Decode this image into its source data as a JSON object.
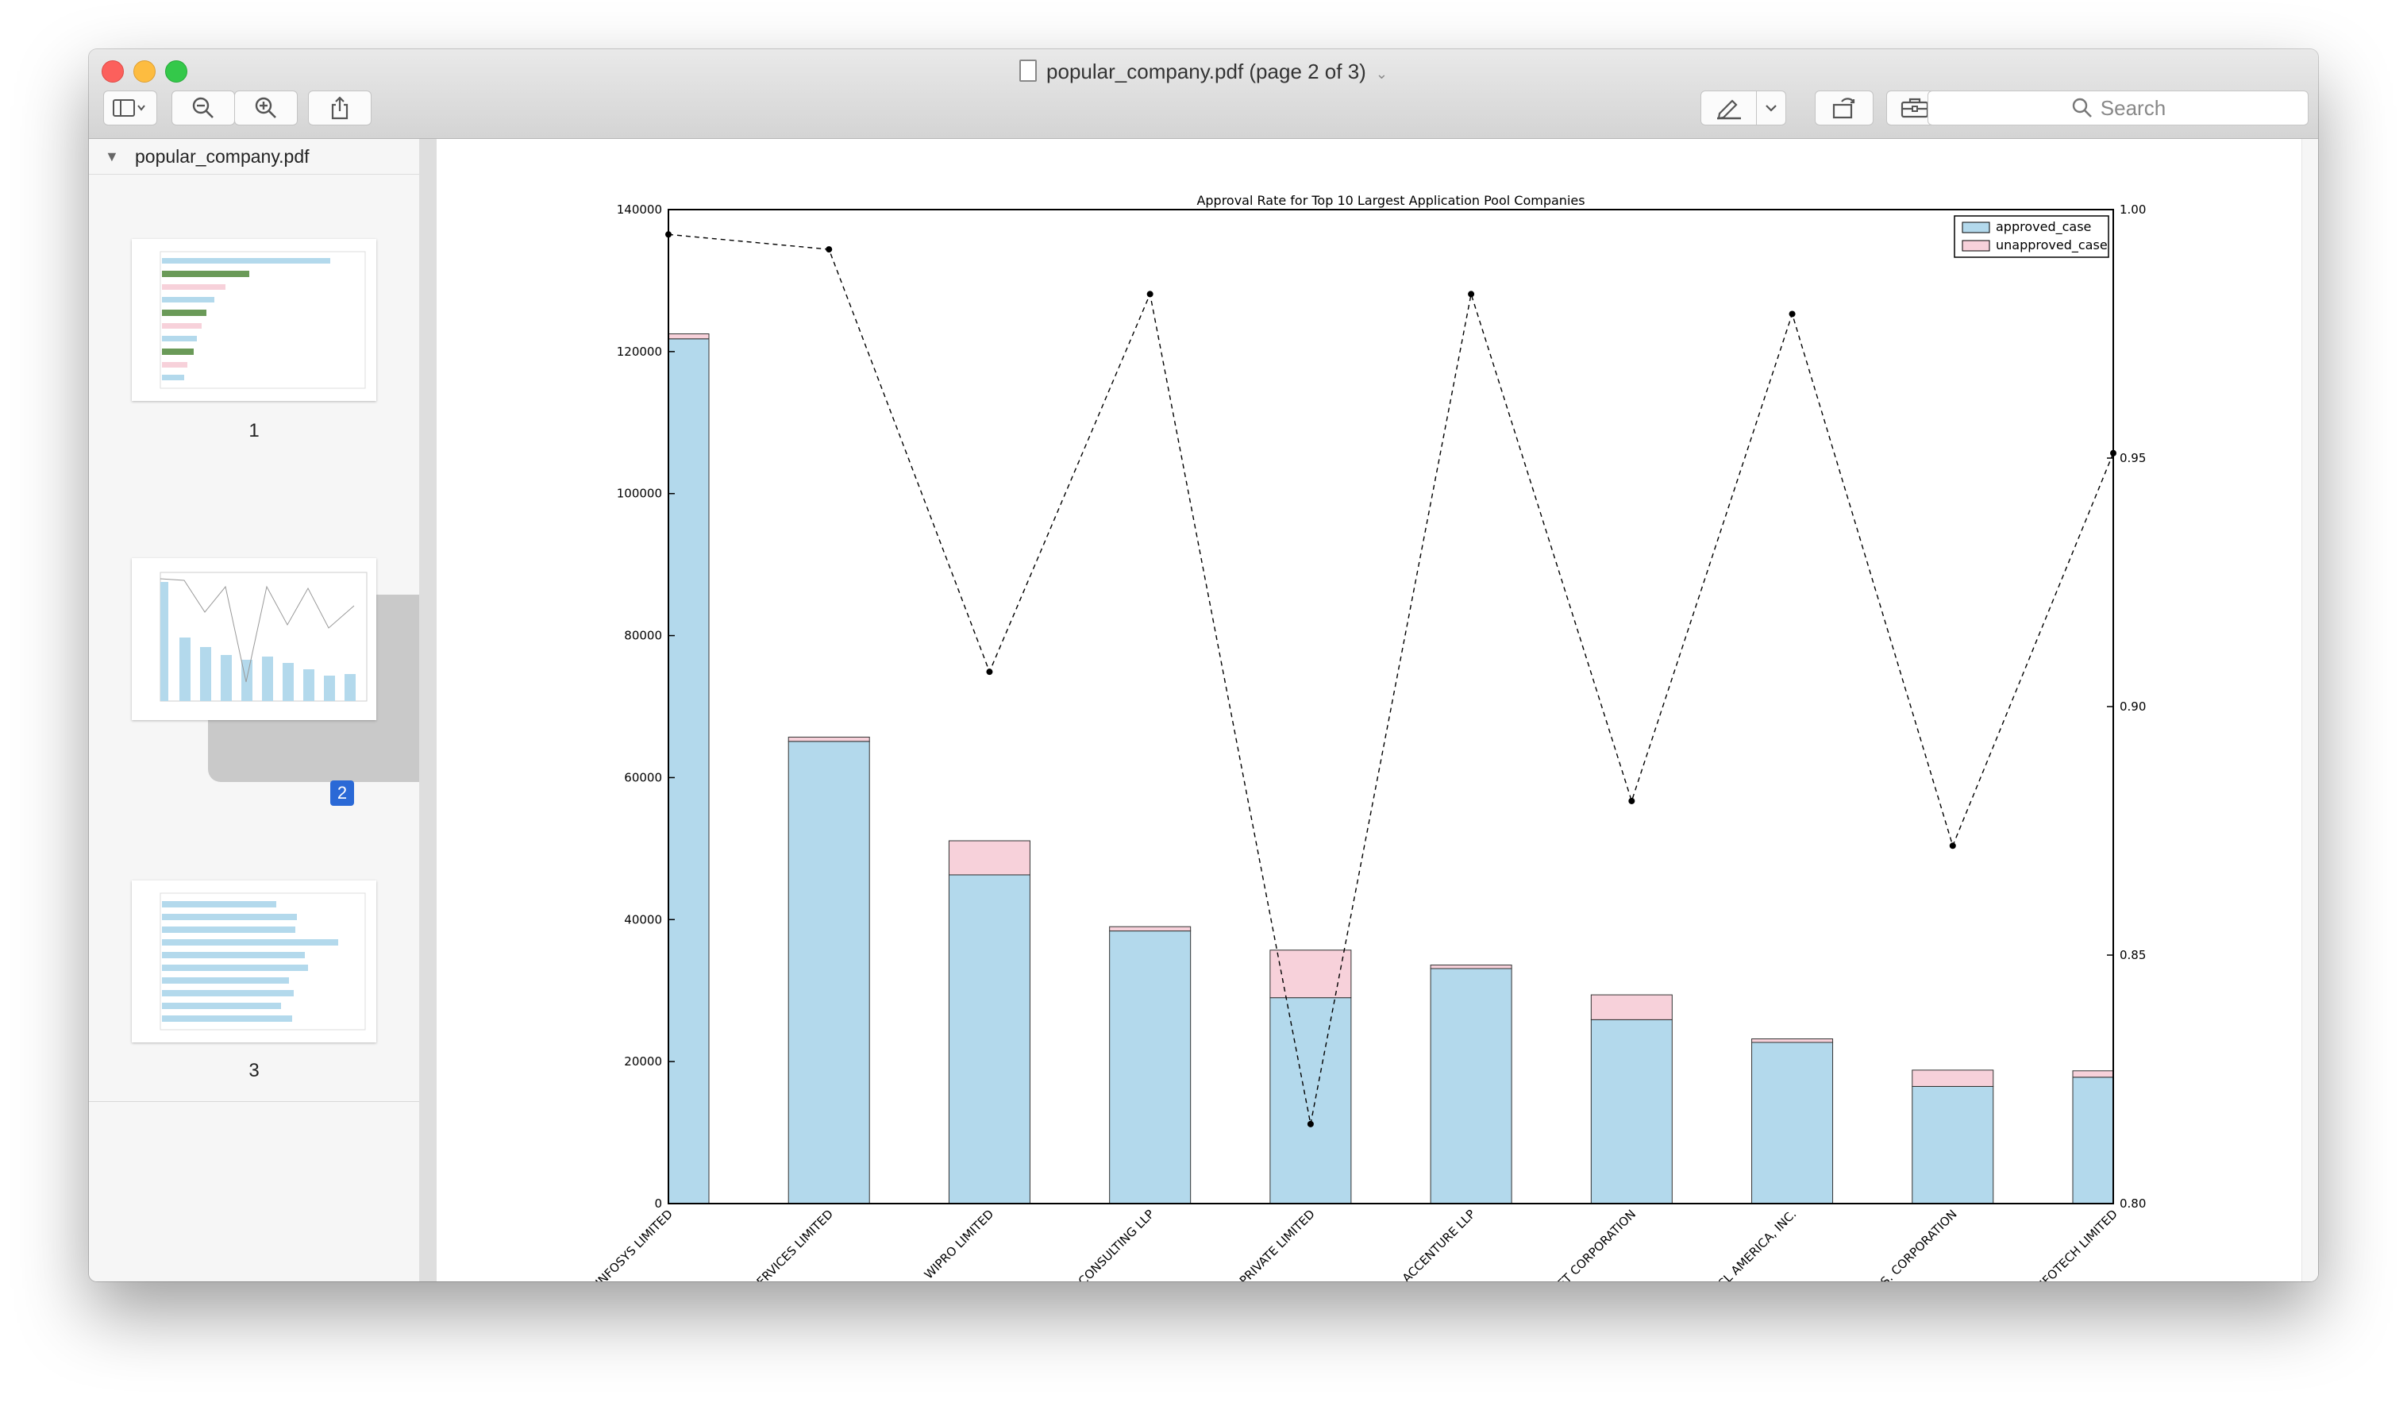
{
  "window": {
    "file_name": "popular_company.pdf",
    "title": "popular_company.pdf (page 2 of 3)"
  },
  "toolbar": {
    "search_placeholder": "Search"
  },
  "sidebar": {
    "file_name": "popular_company.pdf",
    "pages": [
      "1",
      "2",
      "3"
    ],
    "selected_page": "2"
  },
  "colors": {
    "approved": "#b3d9ec",
    "unapproved": "#f7d1da",
    "selection": "#2a69d6"
  },
  "chart_data": {
    "type": "bar",
    "title": "Approval Rate for Top 10 Largest Application Pool Companies",
    "categories": [
      "INFOSYS LIMITED",
      "SERVICES LIMITED",
      "WIPRO LIMITED",
      "E CONSULTING LLP",
      "A PRIVATE LIMITED",
      "ACCENTURE LLP",
      "SOFT CORPORATION",
      "HCL AMERICA, INC.",
      "U.S. CORPORATION",
      "INFOTECH LIMITED"
    ],
    "stacked": true,
    "series": [
      {
        "name": "approved_case",
        "values": [
          121800,
          65100,
          46300,
          38400,
          29000,
          33100,
          25900,
          22700,
          16500,
          17800
        ]
      },
      {
        "name": "unapproved_case",
        "values": [
          700,
          600,
          4800,
          600,
          6700,
          500,
          3500,
          500,
          2300,
          900
        ]
      }
    ],
    "rate_line": [
      0.995,
      0.992,
      0.907,
      0.983,
      0.816,
      0.983,
      0.881,
      0.979,
      0.872,
      0.951
    ],
    "ylim": [
      0,
      140000
    ],
    "yticks": [
      0,
      20000,
      40000,
      60000,
      80000,
      100000,
      120000,
      140000
    ],
    "y2lim": [
      0.8,
      1.0
    ],
    "y2ticks": [
      "0.80",
      "0.85",
      "0.90",
      "0.95",
      "1.00"
    ],
    "legend_position": "top-right"
  }
}
